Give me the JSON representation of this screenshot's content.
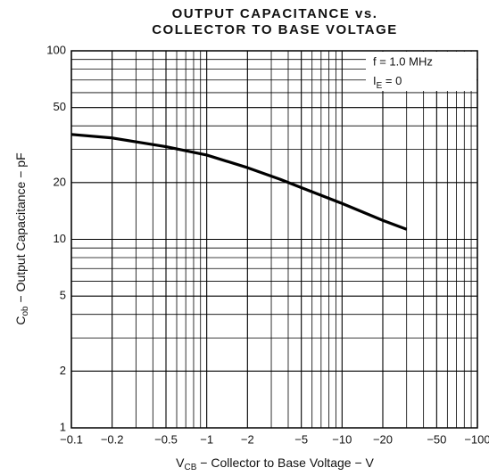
{
  "chart_data": {
    "type": "line",
    "title": [
      "OUTPUT CAPACITANCE vs.",
      "COLLECTOR TO BASE VOLTAGE"
    ],
    "x_label": {
      "symbol": "V",
      "sub": "CB",
      "text": " − Collector to Base Voltage − V"
    },
    "y_label": {
      "symbol": "C",
      "sub": "ob",
      "text": " − Output Capacitance − pF"
    },
    "annotations": [
      {
        "text": "f = 1.0 MHz"
      },
      {
        "symbol": "I",
        "sub": "E",
        "text": " = 0"
      }
    ],
    "log_x": true,
    "log_y": true,
    "grid": true,
    "xlim": [
      -0.1,
      -100
    ],
    "ylim": [
      1,
      100
    ],
    "xticks": [
      {
        "value": -0.1,
        "label": "−0.1"
      },
      {
        "value": -0.2,
        "label": "−0.2"
      },
      {
        "value": -0.5,
        "label": "−0.5"
      },
      {
        "value": -1,
        "label": "−1"
      },
      {
        "value": -2,
        "label": "−2"
      },
      {
        "value": -5,
        "label": "−5"
      },
      {
        "value": -10,
        "label": "−10"
      },
      {
        "value": -20,
        "label": "−20"
      },
      {
        "value": -50,
        "label": "−50"
      },
      {
        "value": -100,
        "label": "−100"
      }
    ],
    "yticks": [
      1,
      2,
      5,
      10,
      20,
      50,
      100
    ],
    "xminor": [
      -0.3,
      -0.4,
      -0.6,
      -0.7,
      -0.8,
      -0.9,
      -3,
      -4,
      -6,
      -7,
      -8,
      -9,
      -30,
      -40,
      -60,
      -70,
      -80,
      -90
    ],
    "yminor": [
      3,
      4,
      6,
      7,
      8,
      9,
      30,
      40,
      60,
      70,
      80,
      90
    ],
    "x": [
      -0.1,
      -0.2,
      -0.5,
      -1,
      -2,
      -3.5,
      -5,
      -10,
      -20,
      -30
    ],
    "series": [
      {
        "color": "#000000",
        "values": [
          36,
          34.5,
          31,
          28,
          24,
          20.8,
          18.8,
          15.5,
          12.6,
          11.3
        ]
      }
    ]
  }
}
